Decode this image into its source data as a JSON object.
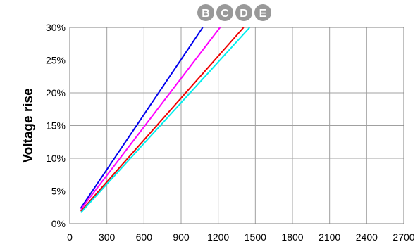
{
  "chart_data": {
    "type": "line",
    "ylabel": "Voltage rise",
    "xlabel": "",
    "xlim": [
      0,
      2700
    ],
    "ylim": [
      0,
      30
    ],
    "x_ticks": [
      "0",
      "300",
      "600",
      "900",
      "1200",
      "1500",
      "1800",
      "2100",
      "2400",
      "2700"
    ],
    "y_ticks": [
      "0%",
      "5%",
      "10%",
      "15%",
      "20%",
      "25%",
      "30%"
    ],
    "grid": true,
    "legend_placement": "top",
    "series": [
      {
        "name": "B",
        "color": "#0000ee",
        "points": [
          [
            90,
            2.4
          ],
          [
            1075,
            30
          ]
        ]
      },
      {
        "name": "C",
        "color": "#ff00ff",
        "points": [
          [
            90,
            2.2
          ],
          [
            1215,
            30
          ]
        ]
      },
      {
        "name": "D",
        "color": "#ee0000",
        "points": [
          [
            90,
            1.9
          ],
          [
            1405,
            30
          ]
        ]
      },
      {
        "name": "E",
        "color": "#00eeee",
        "points": [
          [
            90,
            1.7
          ],
          [
            1455,
            30
          ]
        ]
      }
    ],
    "badge_color": "#999999"
  }
}
